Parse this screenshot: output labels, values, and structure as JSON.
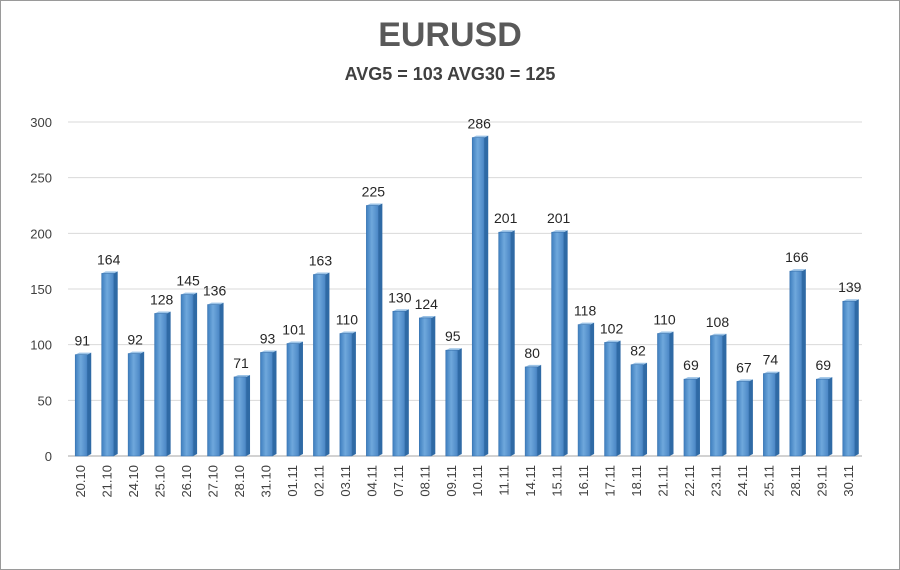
{
  "chart_data": {
    "type": "bar",
    "title": "EURUSD",
    "subtitle": "AVG5 = 103 AVG30 = 125",
    "xlabel": "",
    "ylabel": "",
    "ylim": [
      0,
      300
    ],
    "yticks": [
      0,
      50,
      100,
      150,
      200,
      250,
      300
    ],
    "grid": true,
    "bar_color": "#5B9BD5",
    "categories": [
      "20.10",
      "21.10",
      "24.10",
      "25.10",
      "26.10",
      "27.10",
      "28.10",
      "31.10",
      "01.11",
      "02.11",
      "03.11",
      "04.11",
      "07.11",
      "08.11",
      "09.11",
      "10.11",
      "11.11",
      "14.11",
      "15.11",
      "16.11",
      "17.11",
      "18.11",
      "21.11",
      "22.11",
      "23.11",
      "24.11",
      "25.11",
      "28.11",
      "29.11",
      "30.11"
    ],
    "values": [
      91,
      164,
      92,
      128,
      145,
      136,
      71,
      93,
      101,
      163,
      110,
      225,
      130,
      124,
      95,
      286,
      201,
      80,
      201,
      118,
      102,
      82,
      110,
      69,
      108,
      67,
      74,
      166,
      69,
      139
    ]
  }
}
